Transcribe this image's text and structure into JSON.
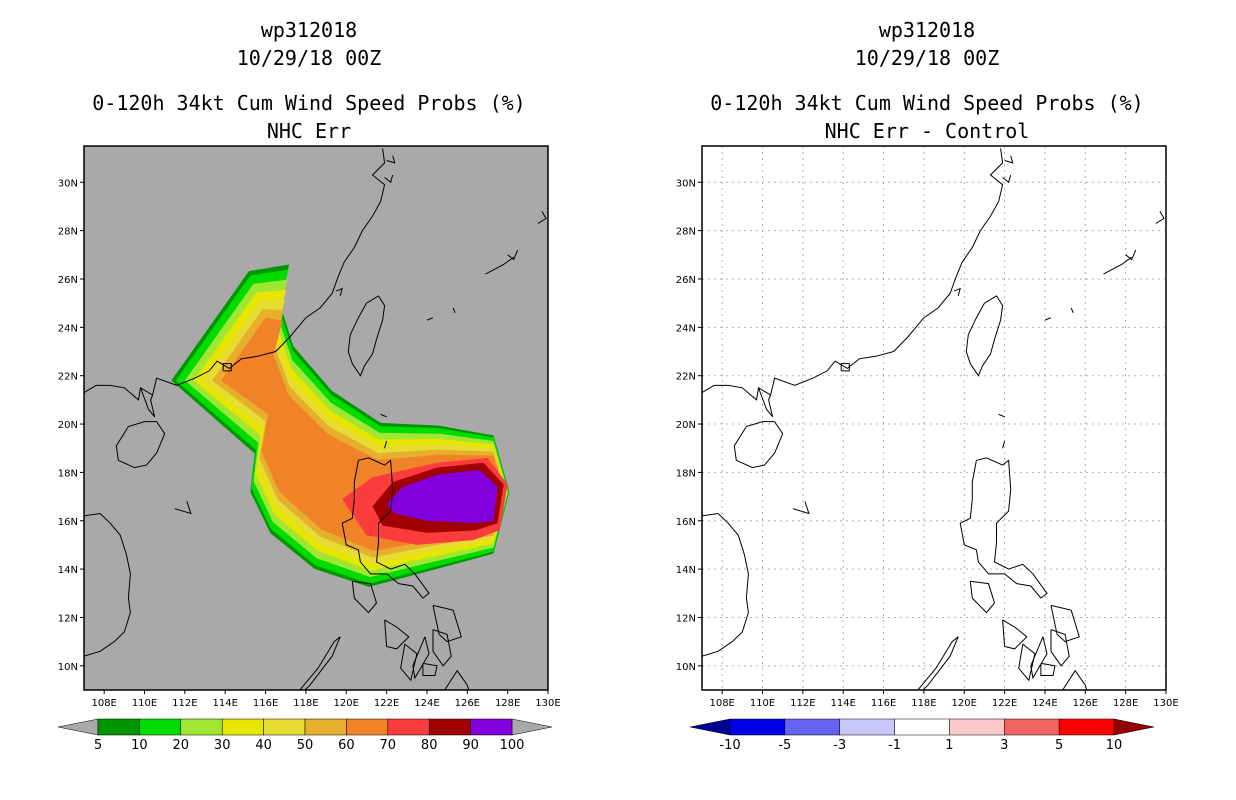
{
  "left_panel": {
    "title_line1": "wp312018",
    "title_line2": "10/29/18 00Z",
    "title_line3": "0-120h 34kt Cum Wind Speed Probs (%)",
    "title_line4": "NHC Err",
    "background": "#a9a9a9",
    "colorbar": {
      "colors": [
        "#009600",
        "#00dc00",
        "#a0e632",
        "#e6e600",
        "#e6dc32",
        "#e6af2d",
        "#f08228",
        "#fa3c3c",
        "#a00000",
        "#8200dc"
      ],
      "labels": [
        "5",
        "10",
        "20",
        "30",
        "40",
        "50",
        "60",
        "70",
        "80",
        "90",
        "100"
      ],
      "extend_color": "#a9a9a9"
    },
    "levels": [
      5,
      10,
      20,
      30,
      40,
      50,
      60,
      70,
      80,
      90
    ]
  },
  "right_panel": {
    "title_line1": "wp312018",
    "title_line2": "10/29/18 00Z",
    "title_line3": "0-120h 34kt Cum Wind Speed Probs (%)",
    "title_line4": "NHC Err - Control",
    "background": "#ffffff",
    "colorbar": {
      "colors": [
        "#0000e6",
        "#6464f0",
        "#c8c8fa",
        "#ffffff",
        "#fac8c8",
        "#f06464",
        "#ff0000"
      ],
      "labels": [
        "-10",
        "-5",
        "-3",
        "-1",
        "1",
        "3",
        "5",
        "10"
      ],
      "low_extend_color": "#000096",
      "high_extend_color": "#960000"
    }
  },
  "map": {
    "lon_ticks": [
      "108E",
      "110E",
      "112E",
      "114E",
      "116E",
      "118E",
      "120E",
      "122E",
      "124E",
      "126E",
      "128E",
      "130E"
    ],
    "lat_ticks": [
      "30N",
      "28N",
      "26N",
      "24N",
      "22N",
      "20N",
      "18N",
      "16N",
      "14N",
      "12N",
      "10N"
    ],
    "lon_range": [
      107,
      130
    ],
    "lat_range": [
      9,
      31.5
    ]
  }
}
